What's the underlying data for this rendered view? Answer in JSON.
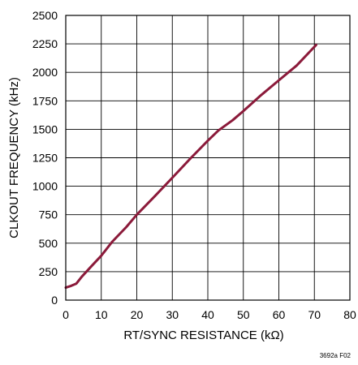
{
  "chart_data": {
    "type": "line",
    "xlabel": "RT/SYNC RESISTANCE (kΩ)",
    "ylabel": "CLKOUT FREQUENCY (kHz)",
    "xlim": [
      0,
      80
    ],
    "ylim": [
      0,
      2500
    ],
    "x_ticks": [
      "0",
      "10",
      "20",
      "30",
      "40",
      "50",
      "60",
      "70",
      "80"
    ],
    "y_ticks": [
      "0",
      "250",
      "500",
      "750",
      "1000",
      "1250",
      "1500",
      "1750",
      "2000",
      "2250",
      "2500"
    ],
    "grid": true,
    "series": [
      {
        "color": "#8b1a3a",
        "x": [
          0,
          1.5,
          3,
          4.5,
          7,
          10,
          13,
          17,
          20,
          25,
          30,
          35,
          40,
          43,
          47,
          50,
          55,
          60,
          65,
          70.5
        ],
        "y": [
          110,
          125,
          145,
          205,
          290,
          390,
          510,
          640,
          750,
          910,
          1075,
          1240,
          1400,
          1490,
          1580,
          1660,
          1800,
          1930,
          2060,
          2240
        ]
      }
    ]
  },
  "figure_id": "3692a F02"
}
